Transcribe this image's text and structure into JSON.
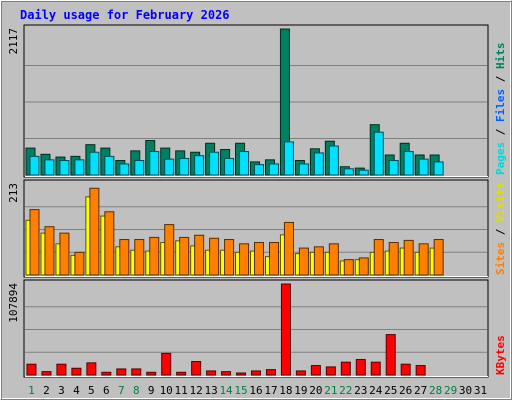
{
  "chart_data": {
    "type": "bar",
    "title": "Daily usage for February 2026",
    "days": [
      "1",
      "2",
      "3",
      "4",
      "5",
      "6",
      "7",
      "8",
      "9",
      "10",
      "11",
      "12",
      "13",
      "14",
      "15",
      "16",
      "17",
      "18",
      "19",
      "20",
      "21",
      "22",
      "23",
      "24",
      "25",
      "26",
      "27",
      "28",
      "29",
      "30",
      "31"
    ],
    "weekend_days": [
      "1",
      "7",
      "8",
      "14",
      "15",
      "21",
      "22",
      "28",
      "29"
    ],
    "panels": [
      {
        "id": "hits-files-pages",
        "max_label": "2117",
        "ymax": 2117,
        "series": [
          {
            "name": "Pages",
            "color": "#00c0d0",
            "values": [
              0,
              0,
              0,
              0,
              0,
              0,
              0,
              0,
              0,
              0,
              0,
              0,
              0,
              0,
              0,
              0,
              0,
              0,
              0,
              0,
              0,
              0,
              0,
              0,
              0,
              0,
              0,
              0,
              0,
              0,
              0
            ]
          },
          {
            "name": "Files",
            "color": "#00e0ff",
            "values": [
              270,
              220,
              210,
              220,
              330,
              270,
              160,
              210,
              340,
              230,
              240,
              280,
              330,
              240,
              340,
              150,
              160,
              480,
              160,
              320,
              420,
              90,
              70,
              620,
              210,
              340,
              230,
              190,
              0,
              0,
              0
            ]
          },
          {
            "name": "Hits",
            "color": "#008060",
            "values": [
              390,
              300,
              260,
              270,
              440,
              390,
              210,
              350,
              500,
              390,
              350,
              330,
              460,
              370,
              460,
              190,
              220,
              2117,
              210,
              380,
              490,
              120,
              100,
              730,
              290,
              460,
              290,
              290,
              0,
              0,
              0
            ]
          }
        ],
        "label_parts": [
          {
            "text": "Pages",
            "color": "#00d8d8"
          },
          {
            "text": " / ",
            "color": "#000000"
          },
          {
            "text": "Files",
            "color": "#0060ff"
          },
          {
            "text": " / ",
            "color": "#000000"
          },
          {
            "text": "Hits",
            "color": "#008060"
          }
        ]
      },
      {
        "id": "visits-sites",
        "max_label": "213",
        "ymax": 213,
        "series": [
          {
            "name": "Visits",
            "color": "#ffff00",
            "values": [
              128,
              98,
              73,
              46,
              183,
              138,
              66,
              58,
              56,
              76,
              80,
              68,
              58,
              58,
              53,
              56,
              43,
              94,
              50,
              53,
              53,
              33,
              36,
              53,
              56,
              63,
              53,
              63,
              0,
              0,
              0
            ]
          },
          {
            "name": "Sites",
            "color": "#ff8000",
            "values": [
              153,
              113,
              98,
              53,
              203,
              148,
              83,
              83,
              88,
              118,
              88,
              93,
              86,
              83,
              73,
              76,
              76,
              123,
              63,
              66,
              73,
              36,
              40,
              83,
              76,
              81,
              73,
              83,
              0,
              0,
              0
            ]
          }
        ],
        "label_parts": [
          {
            "text": "Sites",
            "color": "#ff8000"
          },
          {
            "text": " / ",
            "color": "#000000"
          },
          {
            "text": "Visits",
            "color": "#e0e000"
          }
        ]
      },
      {
        "id": "kbytes",
        "max_label": "107894",
        "ymax": 107894,
        "series": [
          {
            "name": "KBytes",
            "color": "#ff0000",
            "values": [
              12800,
              4000,
              12800,
              8000,
              14400,
              3200,
              7200,
              7200,
              3200,
              25600,
              3200,
              16000,
              4800,
              4000,
              2400,
              4800,
              6400,
              107894,
              4800,
              11200,
              9600,
              15200,
              18400,
              15200,
              47900,
              12800,
              11200,
              0,
              0,
              0,
              0
            ]
          }
        ],
        "label_parts": [
          {
            "text": "KBytes",
            "color": "#ff0000"
          }
        ]
      }
    ]
  }
}
